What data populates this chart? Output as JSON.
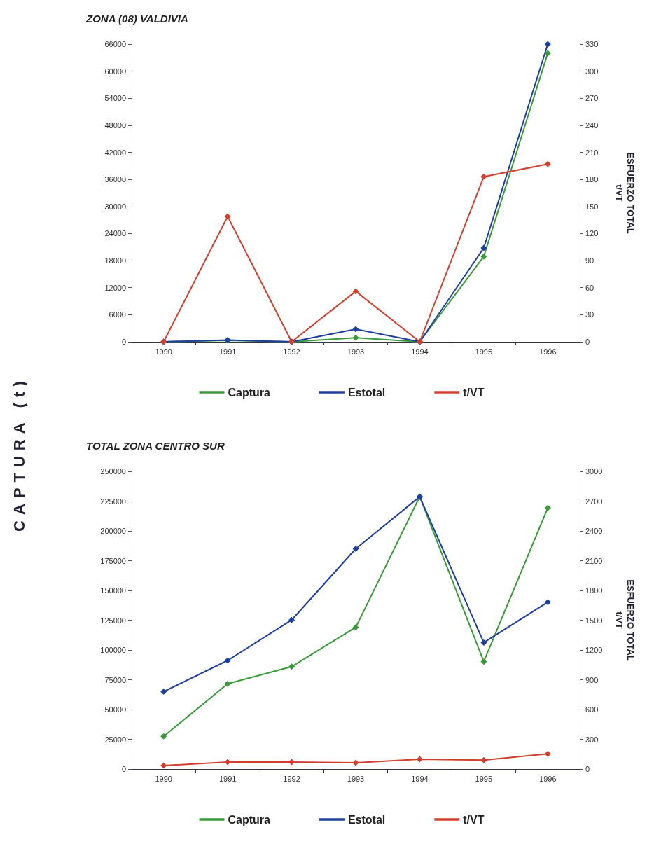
{
  "chart_data": [
    {
      "type": "line",
      "title": "ZONA (08) VALDIVIA",
      "ylabel": "CAPTURA (t)",
      "y2label": "ESFUERZO TOTAL\nt/VT",
      "categories": [
        "1990",
        "1991",
        "1992",
        "1993",
        "1994",
        "1995",
        "1996"
      ],
      "series": [
        {
          "name": "Captura",
          "color": "#3a9a3a",
          "values": [
            0,
            300,
            0,
            900,
            0,
            18900,
            64000
          ]
        },
        {
          "name": "Estotal",
          "color": "#1f3f9f",
          "axis": "y2",
          "values": [
            0,
            2,
            0,
            14,
            0,
            104,
            330
          ]
        },
        {
          "name": "t/VT",
          "color": "#d0402f",
          "axis": "y2",
          "values": [
            0,
            139,
            0,
            56,
            0,
            183,
            197
          ]
        }
      ],
      "ylim": [
        0,
        66000
      ],
      "yticks": [
        0,
        6000,
        12000,
        18000,
        24000,
        30000,
        36000,
        42000,
        48000,
        54000,
        60000,
        66000
      ],
      "y2lim": [
        0,
        330
      ],
      "y2ticks": [
        0,
        30,
        60,
        90,
        120,
        150,
        180,
        210,
        240,
        270,
        300,
        330
      ],
      "marker": "diamond",
      "legend": "bottom",
      "grid": false
    },
    {
      "type": "line",
      "title": "TOTAL ZONA CENTRO SUR",
      "y2label": "ESFUERZO TOTAL\nt/VT",
      "categories": [
        "1990",
        "1991",
        "1992",
        "1993",
        "1994",
        "1995",
        "1996"
      ],
      "series": [
        {
          "name": "Captura",
          "color": "#3a9a3a",
          "values": [
            27500,
            71600,
            86000,
            119000,
            228800,
            90200,
            219300
          ]
        },
        {
          "name": "Estotal",
          "color": "#1f3f9f",
          "axis": "y2",
          "values": [
            780,
            1094,
            1502,
            2220,
            2745,
            1275,
            1682
          ]
        },
        {
          "name": "t/VT",
          "color": "#d0402f",
          "axis": "y2",
          "values": [
            35,
            70,
            70,
            63,
            98,
            90,
            153
          ]
        }
      ],
      "ylim": [
        0,
        250000
      ],
      "yticks": [
        0,
        25000,
        50000,
        75000,
        100000,
        125000,
        150000,
        175000,
        200000,
        225000,
        250000
      ],
      "y2lim": [
        0,
        3000
      ],
      "y2ticks": [
        0,
        300,
        600,
        900,
        1200,
        1500,
        1800,
        2100,
        2400,
        2700,
        3000
      ],
      "marker": "diamond",
      "legend": "bottom",
      "grid": false
    }
  ]
}
